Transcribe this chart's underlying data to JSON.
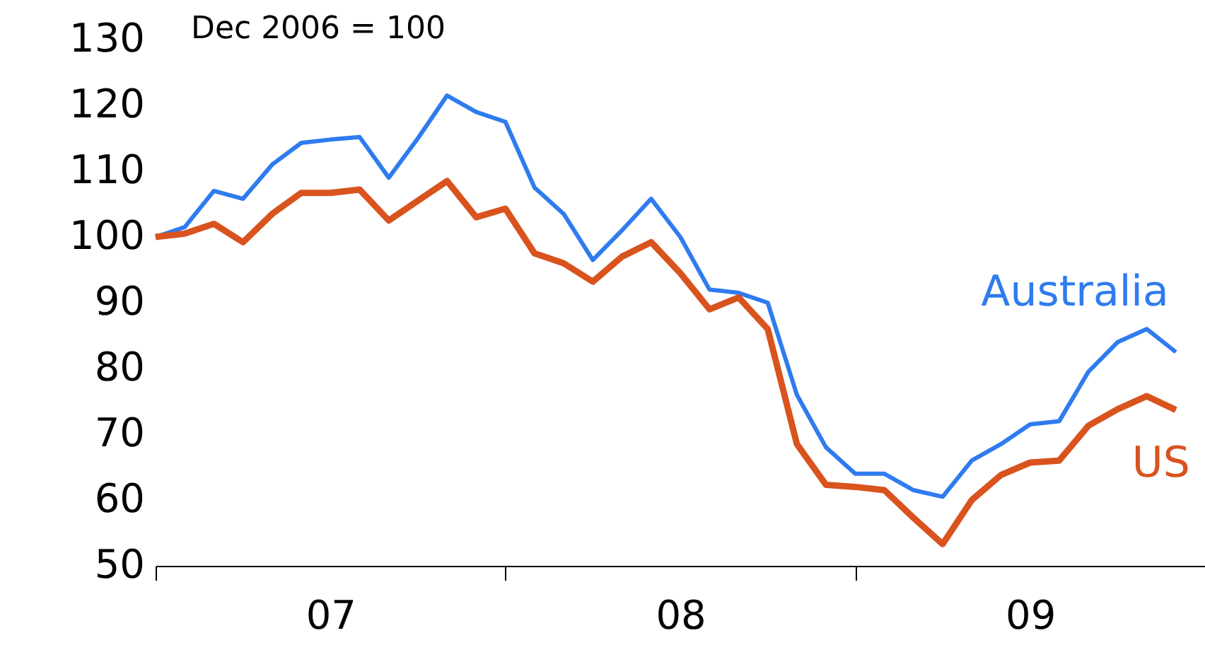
{
  "chart_data": {
    "type": "line",
    "annotations": [
      "Dec 2006 = 100"
    ],
    "x": [
      "2006-12",
      "2007-01",
      "2007-02",
      "2007-03",
      "2007-04",
      "2007-05",
      "2007-06",
      "2007-07",
      "2007-08",
      "2007-09",
      "2007-10",
      "2007-11",
      "2007-12",
      "2008-01",
      "2008-02",
      "2008-03",
      "2008-04",
      "2008-05",
      "2008-06",
      "2008-07",
      "2008-08",
      "2008-09",
      "2008-10",
      "2008-11",
      "2008-12",
      "2009-01",
      "2009-02",
      "2009-03",
      "2009-04",
      "2009-05",
      "2009-06",
      "2009-07",
      "2009-08",
      "2009-09",
      "2009-10",
      "2009-11"
    ],
    "series": [
      {
        "name": "Australia",
        "color": "#2f7bef",
        "values": [
          100,
          101.5,
          107,
          105.8,
          111,
          114.3,
          114.8,
          115.2,
          109,
          115,
          121.5,
          119,
          117.5,
          107.5,
          103.5,
          96.5,
          101,
          105.8,
          100,
          92,
          91.5,
          90,
          76,
          68,
          64,
          64,
          61.5,
          60.5,
          66,
          68.5,
          71.5,
          72,
          79.5,
          84,
          86,
          82.5
        ]
      },
      {
        "name": "US",
        "color": "#d9531e",
        "values": [
          100,
          100.5,
          102,
          99.2,
          103.5,
          106.7,
          106.7,
          107.2,
          102.5,
          105.5,
          108.5,
          103,
          104.3,
          97.5,
          96,
          93.2,
          97,
          99.2,
          94.5,
          89,
          90.8,
          86,
          68.5,
          62.3,
          62,
          61.5,
          57.3,
          53.3,
          60,
          63.8,
          65.7,
          66,
          71.3,
          73.8,
          75.8,
          73.7
        ]
      }
    ],
    "ylim": [
      50,
      130
    ],
    "yticks": [
      50,
      60,
      70,
      80,
      90,
      100,
      110,
      120,
      130
    ],
    "xlim": [
      "2006-12",
      "2009-12"
    ],
    "xticks": [
      {
        "value": "2006-12",
        "label": null
      },
      {
        "value": "2007-06",
        "label": "07"
      },
      {
        "value": "2007-12",
        "label": null
      },
      {
        "value": "2008-06",
        "label": "08"
      },
      {
        "value": "2008-12",
        "label": null
      },
      {
        "value": "2009-06",
        "label": "09"
      },
      {
        "value": "2009-12",
        "label": null
      }
    ],
    "grid": false,
    "legend": false,
    "marker": "none",
    "line_style": "solid"
  }
}
